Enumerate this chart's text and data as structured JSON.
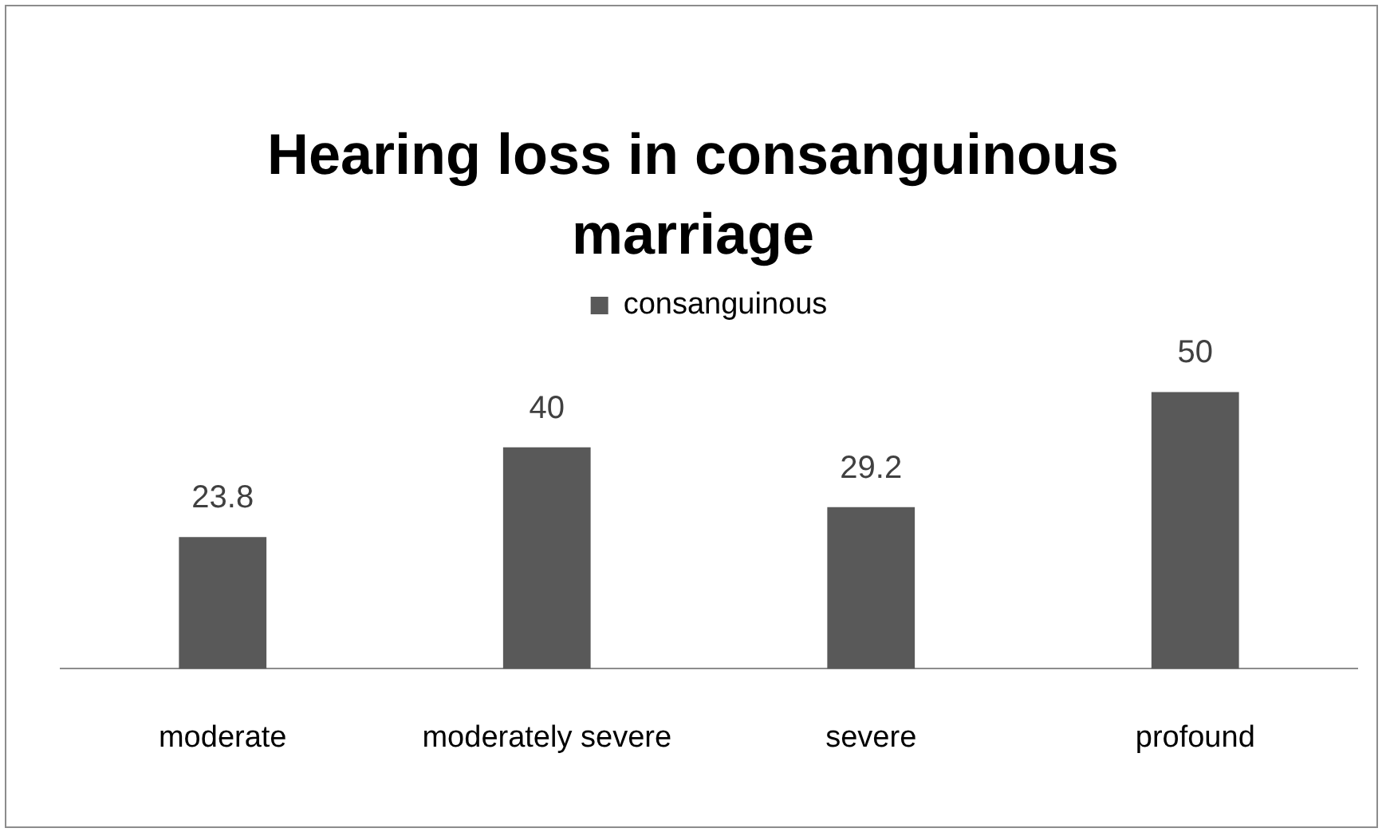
{
  "chart_data": {
    "type": "bar",
    "title": "Hearing loss in consanguinous marriage",
    "categories": [
      "moderate",
      "moderately severe",
      "severe",
      "profound"
    ],
    "series": [
      {
        "name": "consanguinous",
        "color": "#595959",
        "values": [
          23.8,
          40,
          29.2,
          50
        ]
      }
    ],
    "tick_labels": "x",
    "data_labels": true,
    "legend": "top",
    "grid": false
  }
}
